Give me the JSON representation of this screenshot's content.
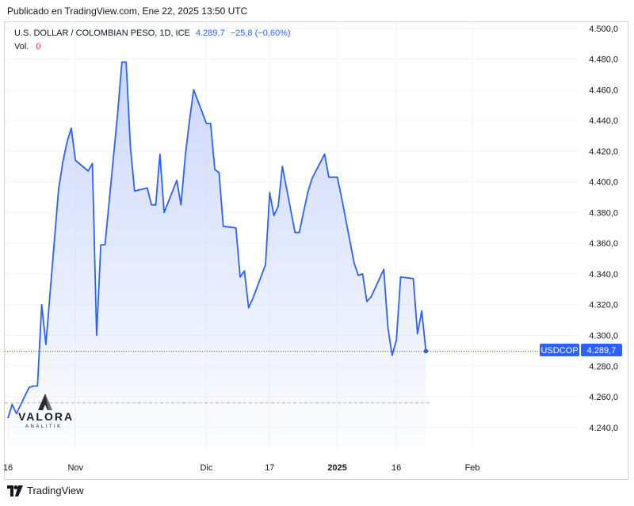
{
  "header": {
    "published": "Publicado en TradingView.com, Ene 22, 2025 13:50 UTC"
  },
  "legend": {
    "symbol": "U.S. DOLLAR / COLOMBIAN PESO, 1D, ICE",
    "last": "4.289,7",
    "change": "−25,8 (−0,60%)",
    "vol_label": "Vol.",
    "vol_value": "0"
  },
  "watermark": {
    "name": "VALORA",
    "sub": "ANALITIK"
  },
  "footer": {
    "brand": "TradingView"
  },
  "price_badge": {
    "ticker": "USDCOP",
    "value": "4.289,7"
  },
  "colors": {
    "line": "#2962ff",
    "fill_top": "#c7d3fb",
    "grid": "#f0f3fa",
    "axis_text": "#131722"
  },
  "chart_data": {
    "type": "area",
    "title": "U.S. DOLLAR / COLOMBIAN PESO, 1D, ICE",
    "xlabel": "",
    "ylabel": "",
    "ylim": [
      4227,
      4504
    ],
    "grid": true,
    "y_ticks": [
      4500,
      4480,
      4460,
      4440,
      4420,
      4400,
      4380,
      4360,
      4340,
      4320,
      4300,
      4280,
      4260,
      4240
    ],
    "y_tick_labels": [
      "4.500,0",
      "4.480,0",
      "4.460,0",
      "4.440,0",
      "4.420,0",
      "4.400,0",
      "4.380,0",
      "4.360,0",
      "4.340,0",
      "4.320,0",
      "4.300,0",
      "4.280,0",
      "4.260,0",
      "4.240,0"
    ],
    "x_ticks": [
      {
        "label": "16",
        "date": "2024-10-16"
      },
      {
        "label": "Nov",
        "date": "2024-11-01"
      },
      {
        "label": "Dic",
        "date": "2024-12-02"
      },
      {
        "label": "17",
        "date": "2024-12-17"
      },
      {
        "label": "2025",
        "date": "2025-01-02"
      },
      {
        "label": "16",
        "date": "2025-01-16"
      },
      {
        "label": "Feb",
        "date": "2025-02-03"
      }
    ],
    "x_range": [
      "2024-10-16",
      "2025-02-12"
    ],
    "dashed_level": 4256,
    "last_value": 4289.7,
    "series": [
      {
        "points": [
          [
            "2024-10-16",
            4246
          ],
          [
            "2024-10-17",
            4255
          ],
          [
            "2024-10-18",
            4249
          ],
          [
            "2024-10-21",
            4266
          ],
          [
            "2024-10-22",
            4267
          ],
          [
            "2024-10-23",
            4267
          ],
          [
            "2024-10-24",
            4320
          ],
          [
            "2024-10-25",
            4294
          ],
          [
            "2024-10-28",
            4395
          ],
          [
            "2024-10-29",
            4413
          ],
          [
            "2024-10-30",
            4426
          ],
          [
            "2024-10-31",
            4435
          ],
          [
            "2024-11-01",
            4414
          ],
          [
            "2024-11-04",
            4407
          ],
          [
            "2024-11-05",
            4412
          ],
          [
            "2024-11-06",
            4300
          ],
          [
            "2024-11-07",
            4359
          ],
          [
            "2024-11-08",
            4359
          ],
          [
            "2024-11-11",
            4445
          ],
          [
            "2024-11-12",
            4478
          ],
          [
            "2024-11-13",
            4478
          ],
          [
            "2024-11-14",
            4423
          ],
          [
            "2024-11-15",
            4394
          ],
          [
            "2024-11-18",
            4396
          ],
          [
            "2024-11-19",
            4385
          ],
          [
            "2024-11-20",
            4385
          ],
          [
            "2024-11-21",
            4418
          ],
          [
            "2024-11-22",
            4380
          ],
          [
            "2024-11-25",
            4401
          ],
          [
            "2024-11-26",
            4385
          ],
          [
            "2024-11-27",
            4417
          ],
          [
            "2024-11-28",
            4440
          ],
          [
            "2024-11-29",
            4460
          ],
          [
            "2024-12-02",
            4438
          ],
          [
            "2024-12-03",
            4438
          ],
          [
            "2024-12-04",
            4408
          ],
          [
            "2024-12-05",
            4406
          ],
          [
            "2024-12-06",
            4371
          ],
          [
            "2024-12-09",
            4370
          ],
          [
            "2024-12-10",
            4338
          ],
          [
            "2024-12-11",
            4342
          ],
          [
            "2024-12-12",
            4318
          ],
          [
            "2024-12-13",
            4324
          ],
          [
            "2024-12-16",
            4346
          ],
          [
            "2024-12-17",
            4393
          ],
          [
            "2024-12-18",
            4378
          ],
          [
            "2024-12-19",
            4384
          ],
          [
            "2024-12-20",
            4410
          ],
          [
            "2024-12-23",
            4367
          ],
          [
            "2024-12-24",
            4367
          ],
          [
            "2024-12-26",
            4393
          ],
          [
            "2024-12-27",
            4402
          ],
          [
            "2024-12-30",
            4418
          ],
          [
            "2024-12-31",
            4403
          ],
          [
            "2025-01-02",
            4403
          ],
          [
            "2025-01-03",
            4390
          ],
          [
            "2025-01-06",
            4347
          ],
          [
            "2025-01-07",
            4339
          ],
          [
            "2025-01-08",
            4340
          ],
          [
            "2025-01-09",
            4322
          ],
          [
            "2025-01-10",
            4325
          ],
          [
            "2025-01-13",
            4343
          ],
          [
            "2025-01-14",
            4305
          ],
          [
            "2025-01-15",
            4287
          ],
          [
            "2025-01-16",
            4297
          ],
          [
            "2025-01-17",
            4338
          ],
          [
            "2025-01-20",
            4337
          ],
          [
            "2025-01-21",
            4301
          ],
          [
            "2025-01-22",
            4316
          ],
          [
            "2025-01-23",
            4289.7
          ]
        ]
      }
    ]
  }
}
